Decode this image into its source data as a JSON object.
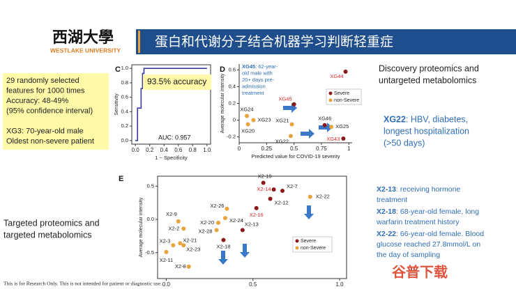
{
  "header": {
    "logo_cn": "西湖大學",
    "logo_en": "WESTLAKE UNIVERSITY",
    "title": "蛋白和代谢分子结合机器学习判断轻重症"
  },
  "left_note": {
    "lines": [
      "29 randomly selected",
      "features for 1000 times",
      "Accuracy: 48-49%",
      "(95% confidence interval)",
      "",
      "XG3: 70-year-old male",
      "Oldest non-severe patient"
    ]
  },
  "right_notes": {
    "discovery": [
      "Discovery proteomics and",
      "untargeted metabolomics"
    ],
    "xg22": {
      "highlight": "XG22",
      "lines": [
        ": HBV, diabetes,",
        "longest hospitalization",
        "(>50 days)"
      ]
    },
    "targeted": [
      "Targeted proteomics and",
      "targeted metabolomics"
    ],
    "x2": [
      {
        "highlight": "X2-13",
        "lines": [
          ": receiving hormone",
          "treatment"
        ]
      },
      {
        "highlight": "X2-18",
        "lines": [
          ": 68-year-old female, long",
          "warfarin treatment history"
        ]
      },
      {
        "highlight": "X2-22",
        "lines": [
          ": 66-year-old female. Blood",
          "glucose reached 27.8mmol/L on",
          "the day of sampling"
        ]
      }
    ]
  },
  "footer": "This is for Research Only. This is not intended for patient or diagnostic use.",
  "watermark": "谷普下载",
  "chart_data": [
    {
      "type": "line",
      "panel": "C",
      "x_label": "1 − Specificity",
      "y_label": "Sensitivity",
      "accuracy": "93.5% accuracy",
      "auc": "AUC: 0.957",
      "x": [
        0,
        0.03,
        0.03,
        0.08,
        0.08,
        0.1,
        0.1,
        0.12,
        0.12,
        1
      ],
      "series": [
        {
          "color": "#3a3aa0",
          "values": [
            0,
            0,
            0.45,
            0.45,
            0.72,
            0.72,
            0.93,
            0.93,
            1,
            1
          ]
        }
      ],
      "xlim": [
        -0.05,
        1.05
      ],
      "ylim": [
        -0.05,
        1.05
      ],
      "xticks": [
        {
          "value": 0,
          "label": "0.0"
        },
        0.2,
        0.4,
        0.6,
        0.8,
        {
          "value": 1,
          "label": "1.0"
        }
      ],
      "yticks": [
        {
          "value": 0,
          "label": "0.0"
        },
        0.2,
        0.4,
        0.6,
        0.8,
        {
          "value": 1,
          "label": "1.0"
        }
      ]
    },
    {
      "type": "scatter",
      "panel": "D",
      "x_label": "Predicted value for COVID-19 severity",
      "y_label": "Average molecular intensity",
      "annotation": {
        "highlight": "XG45",
        "lines": [
          ": 62-year-",
          "old male with",
          "20+ days pre-",
          "admission",
          "treatment"
        ]
      },
      "legend": "right",
      "series": [
        {
          "name": "Severe",
          "color": "#8b1a1a",
          "labels": [
            "XG44",
            "XG45",
            "XG46",
            "XG43"
          ],
          "label_colors": [
            "#d62728",
            "#d62728",
            "#222222",
            "#d62728"
          ],
          "x": [
            0.97,
            0.5,
            0.78,
            0.95
          ],
          "values": [
            0.58,
            0.19,
            -0.06,
            -0.22
          ]
        },
        {
          "name": "non-Severe",
          "color": "#e8a33d",
          "labels": [
            "XG24",
            "XG23",
            "XG20",
            "XG21",
            "XG25",
            "XG22"
          ],
          "label_colors": [
            "#222222",
            "#222222",
            "#222222",
            "#222222",
            "#222222",
            "#222222"
          ],
          "x": [
            0.07,
            0.13,
            0.08,
            0.48,
            0.84,
            0.47
          ],
          "values": [
            0.05,
            0,
            -0.05,
            -0.05,
            -0.08,
            -0.19
          ]
        }
      ],
      "xlim": [
        0,
        1.03
      ],
      "ylim": [
        -0.27,
        0.67
      ],
      "xticks": [
        0,
        0.25,
        0.5,
        0.75,
        1
      ],
      "yticks": [
        -0.2,
        0,
        0.2,
        0.4,
        0.6
      ]
    },
    {
      "type": "scatter",
      "panel": "E",
      "x_label": "Predicted value for COVID-19 severity",
      "y_label": "Average molecular intensity",
      "legend": "lower right",
      "series": [
        {
          "name": "Severe",
          "color": "#8b1a1a",
          "labels": [
            "X2-19",
            "X2-14",
            "X2-7",
            "X2-12",
            "X2-16",
            "X2-13",
            "X2-18"
          ],
          "label_colors": [
            "#222222",
            "#d62728",
            "#222222",
            "#222222",
            "#d62728",
            "#222222",
            "#222222"
          ],
          "x": [
            0.56,
            0.62,
            0.67,
            0.6,
            0.52,
            0.44,
            0.33
          ],
          "values": [
            0.55,
            0.45,
            0.43,
            0.31,
            0.17,
            -0.16,
            -0.31
          ]
        },
        {
          "name": "non-Severe",
          "color": "#e8a33d",
          "labels": [
            "X2-22",
            "X2-26",
            "X2-24",
            "X2-20",
            "X2-28",
            "X2-9",
            "X2-2",
            "X2-21",
            "X2-23",
            "X2-3",
            "X2-11",
            "X2-8"
          ],
          "label_colors": [
            "#222222",
            "#222222",
            "#222222",
            "#222222",
            "#222222",
            "#222222",
            "#222222",
            "#222222",
            "#222222",
            "#222222",
            "#222222",
            "#222222"
          ],
          "x": [
            0.83,
            0.35,
            0.34,
            0.3,
            0.29,
            0.07,
            0.1,
            0.08,
            0.1,
            0.04,
            0,
            0.13
          ],
          "values": [
            0.34,
            0.16,
            0.02,
            -0.05,
            -0.16,
            -0.03,
            -0.14,
            -0.36,
            -0.39,
            -0.39,
            -0.49,
            -0.71
          ]
        }
      ],
      "xlim": [
        -0.05,
        1.04
      ],
      "ylim": [
        -0.89,
        0.65
      ],
      "xticks": [
        {
          "value": 0,
          "label": "0.0"
        },
        0.5,
        {
          "value": 1,
          "label": "1.0"
        }
      ],
      "yticks": [
        -0.5,
        {
          "value": 0,
          "label": "0.0"
        },
        0.5
      ]
    }
  ]
}
